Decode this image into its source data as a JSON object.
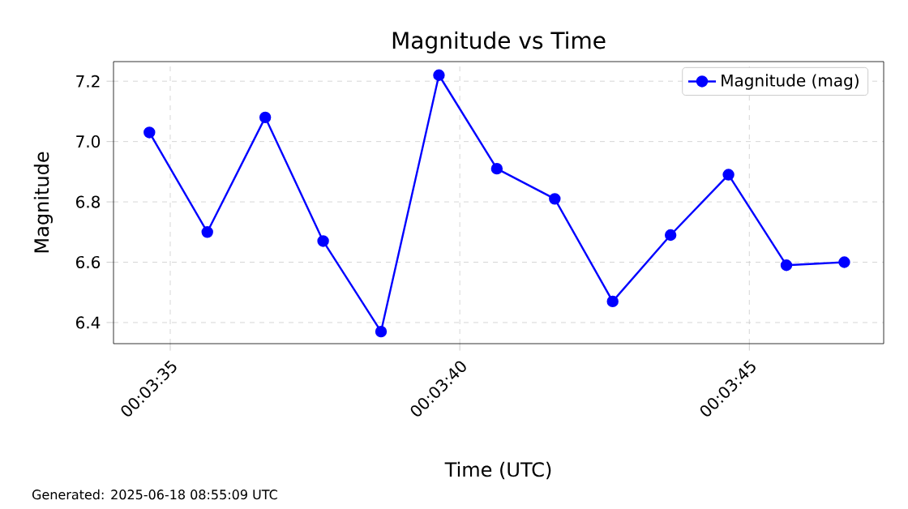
{
  "chart_data": {
    "type": "line",
    "title": "Magnitude vs Time",
    "xlabel": "Time (UTC)",
    "ylabel": "Magnitude",
    "x": [
      0.0596222,
      0.0599,
      0.0601778,
      0.0604556,
      0.0607333,
      0.0610111,
      0.0612889,
      0.0615667,
      0.0618444,
      0.0621222,
      0.0624,
      0.0626778,
      0.0629556
    ],
    "series": [
      {
        "name": "Magnitude (mag)",
        "color": "#0000ff",
        "values": [
          7.03,
          6.7,
          7.08,
          6.67,
          6.37,
          7.22,
          6.91,
          6.81,
          6.47,
          6.69,
          6.89,
          6.59,
          6.6
        ]
      }
    ],
    "xlim": [
      0.05945,
      0.0631444
    ],
    "ylim": [
      6.33,
      7.265
    ],
    "xticks": [
      {
        "value": 0.0597222,
        "label": "00:03:35"
      },
      {
        "value": 0.0611111,
        "label": "00:03:40"
      },
      {
        "value": 0.0625,
        "label": "00:03:45"
      }
    ],
    "yticks": [
      {
        "value": 6.4,
        "label": "6.4"
      },
      {
        "value": 6.6,
        "label": "6.6"
      },
      {
        "value": 6.8,
        "label": "6.8"
      },
      {
        "value": 7.0,
        "label": "7.0"
      },
      {
        "value": 7.2,
        "label": "7.2"
      }
    ],
    "grid": true,
    "legend": "top right",
    "marker": "circle",
    "annotations": [
      "Generated: 2025-06-18 08:55:09 UTC"
    ]
  }
}
